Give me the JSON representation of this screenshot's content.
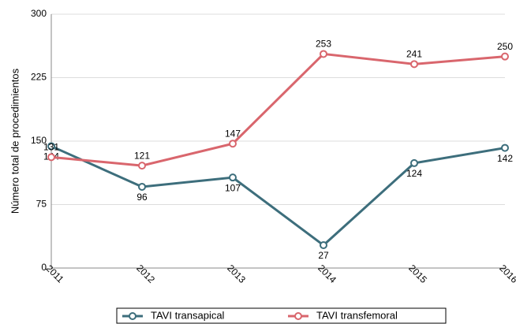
{
  "chart_data": {
    "type": "line",
    "y_label": "Número total de procedimientos",
    "categories": [
      "2011",
      "2012",
      "2013",
      "2014",
      "2015",
      "2016"
    ],
    "series": [
      {
        "name": "TAVI transapical",
        "color": "#3d6e7c",
        "values": [
          144,
          96,
          107,
          27,
          124,
          142
        ]
      },
      {
        "name": "TAVI transfemoral",
        "color": "#d9666d",
        "values": [
          131,
          121,
          147,
          253,
          241,
          250
        ]
      }
    ],
    "ylim": [
      0,
      300
    ],
    "yticks": [
      0,
      75,
      150,
      225,
      300
    ],
    "grid": true,
    "legend": "bottom"
  }
}
